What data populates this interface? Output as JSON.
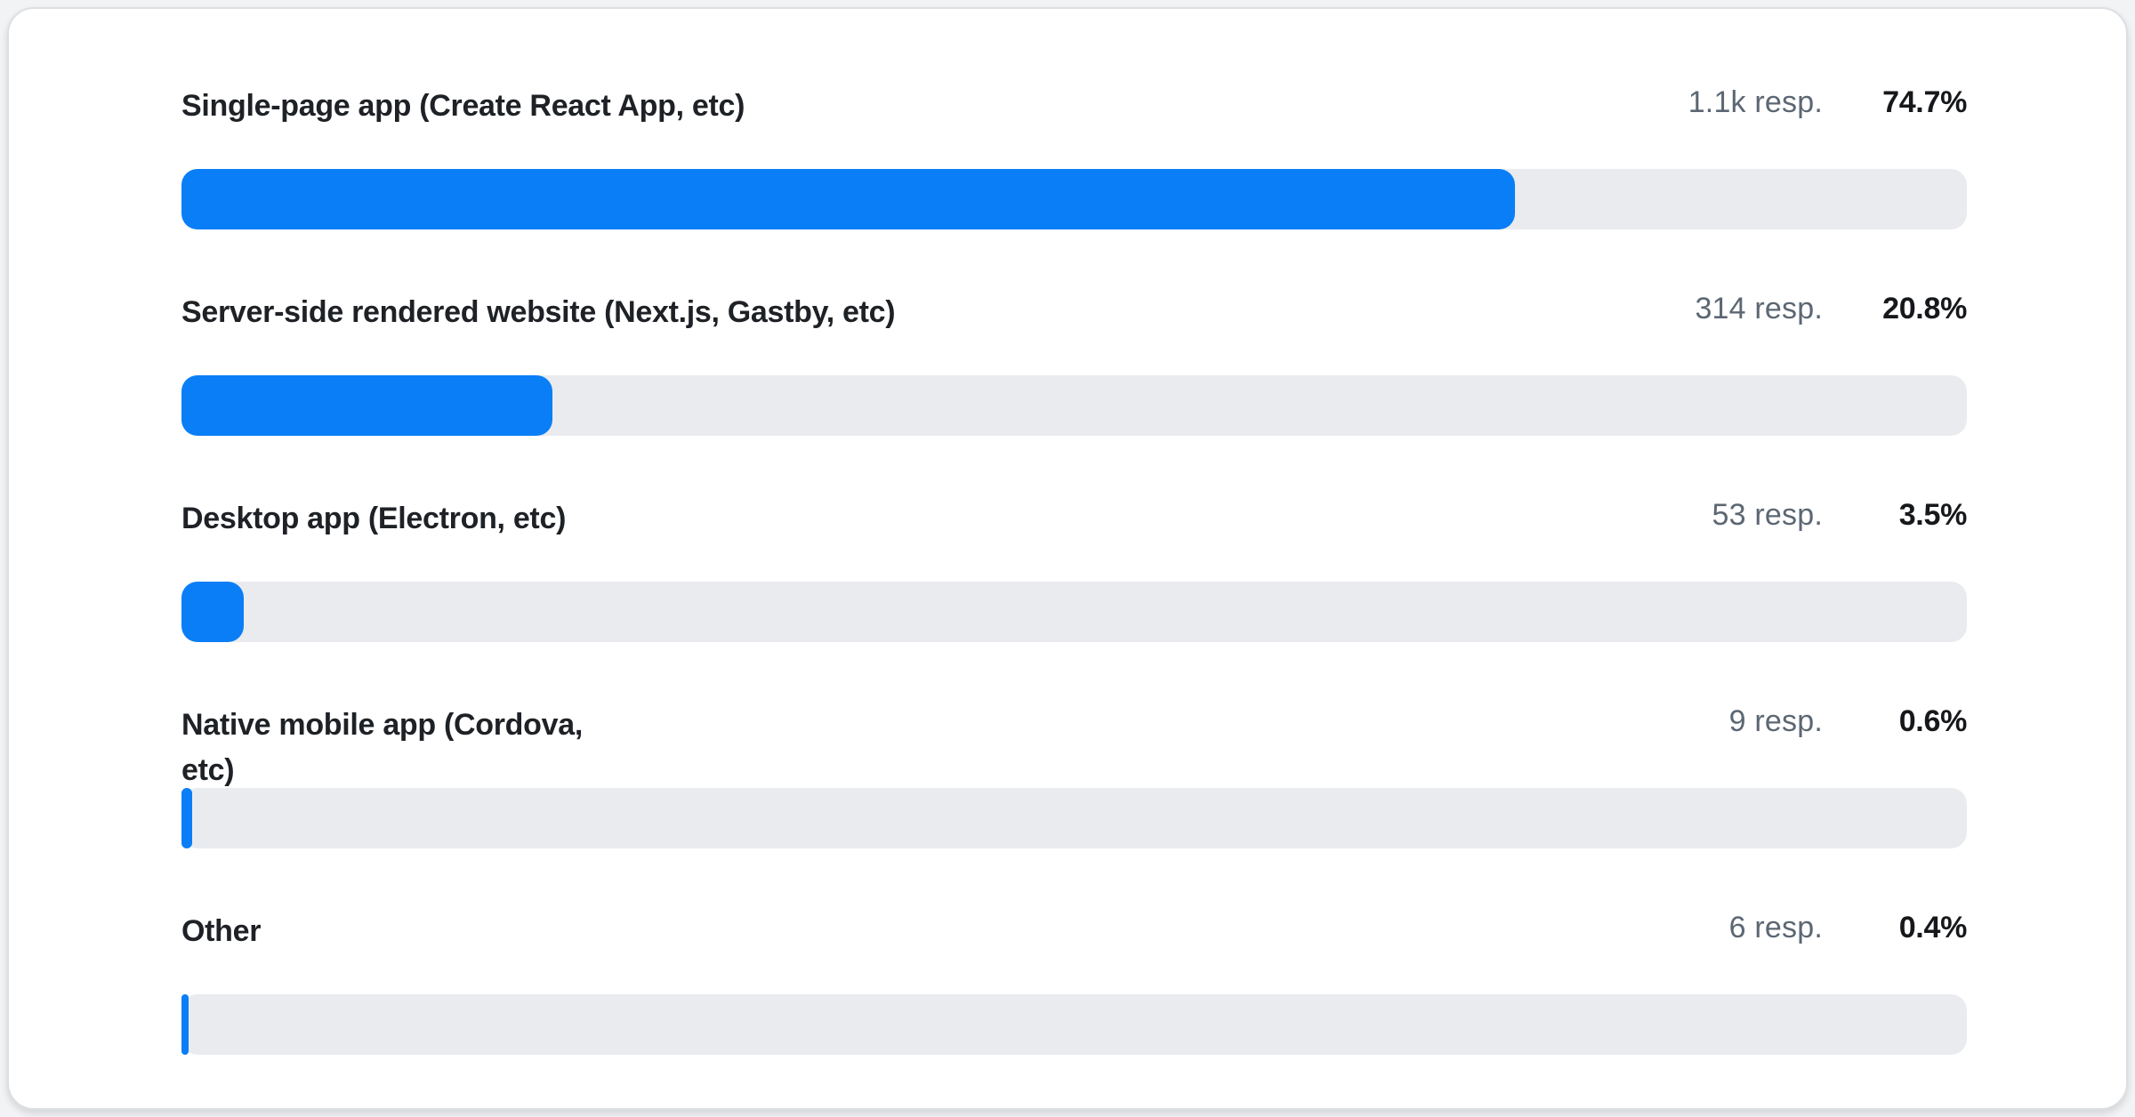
{
  "colors": {
    "bar_fill": "#0a7ef6",
    "bar_track": "#e9ebee",
    "responses": "#5c6773",
    "percent": "#16181b"
  },
  "rows": [
    {
      "label": "Single-page app (Create React App, etc)",
      "responses": "1.1k resp.",
      "percent": "74.7%",
      "value": 74.7
    },
    {
      "label": "Server-side rendered website (Next.js, Gastby, etc)",
      "responses": "314 resp.",
      "percent": "20.8%",
      "value": 20.8
    },
    {
      "label": "Desktop app (Electron, etc)",
      "responses": "53 resp.",
      "percent": "3.5%",
      "value": 3.5
    },
    {
      "label": "Native mobile app (Cordova,\netc)",
      "responses": "9 resp.",
      "percent": "0.6%",
      "value": 0.6
    },
    {
      "label": "Other",
      "responses": "6 resp.",
      "percent": "0.4%",
      "value": 0.4
    }
  ],
  "chart_data": {
    "type": "bar",
    "orientation": "horizontal",
    "categories": [
      "Single-page app (Create React App, etc)",
      "Server-side rendered website (Next.js, Gastby, etc)",
      "Desktop app (Electron, etc)",
      "Native mobile app (Cordova, etc)",
      "Other"
    ],
    "values": [
      74.7,
      20.8,
      3.5,
      0.6,
      0.4
    ],
    "value_unit": "%",
    "response_counts": [
      "1.1k",
      "314",
      "53",
      "9",
      "6"
    ],
    "title": "",
    "xlabel": "",
    "ylabel": "",
    "xlim": [
      0,
      100
    ],
    "grid": false,
    "legend": false
  }
}
